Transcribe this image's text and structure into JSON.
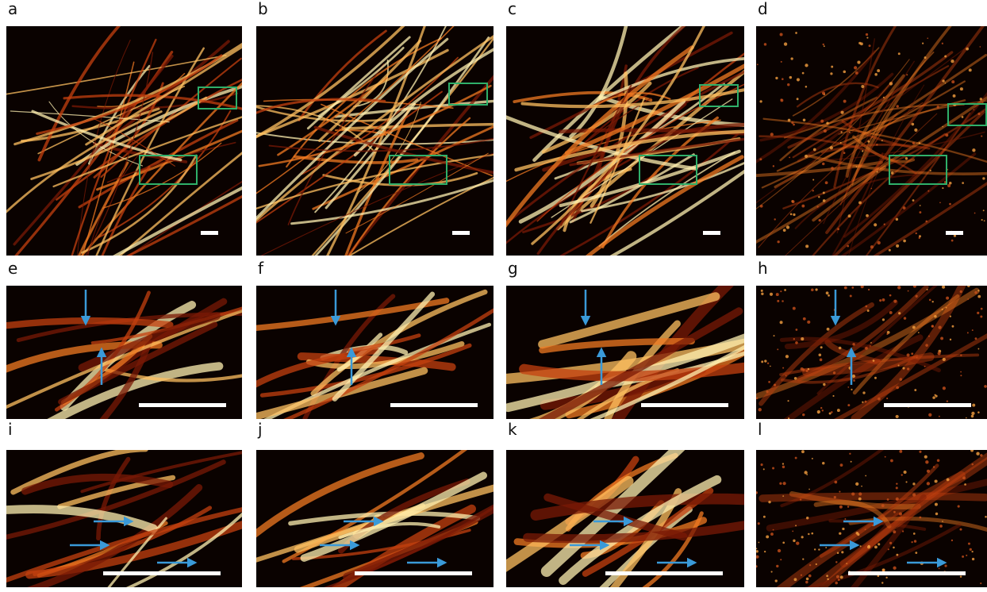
{
  "panels": [
    {
      "label": "a"
    },
    {
      "label": "b"
    },
    {
      "label": "c"
    },
    {
      "label": "d"
    },
    {
      "label": "e"
    },
    {
      "label": "f"
    },
    {
      "label": "g"
    },
    {
      "label": "h"
    },
    {
      "label": "i"
    },
    {
      "label": "j"
    },
    {
      "label": "k"
    },
    {
      "label": "l"
    }
  ]
}
